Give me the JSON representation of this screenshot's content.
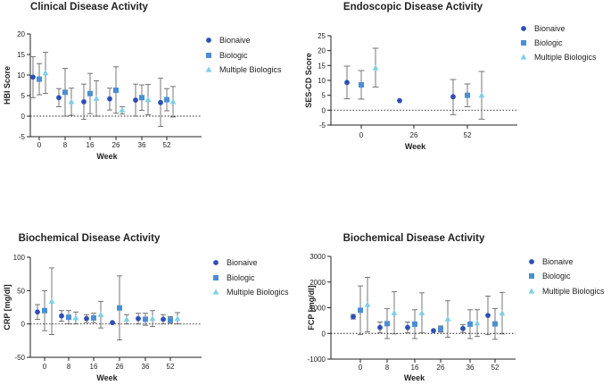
{
  "colors": {
    "bionaive": "#2e4fb5",
    "biologic": "#4a8fd4",
    "multiple": "#7fd0e6",
    "axis": "#222222",
    "errorbar": "#555555"
  },
  "chart_data": [
    {
      "id": "clinical",
      "type": "scatter",
      "title": "Clinical Disease Activity",
      "xlabel": "Week",
      "ylabel": "HBI Score",
      "ylim": [
        -5,
        20
      ],
      "yticks": [
        -5,
        0,
        5,
        10,
        15,
        20
      ],
      "xticks": [
        "0",
        "8",
        "16",
        "26",
        "36",
        "52"
      ],
      "legend": [
        "Bionaive",
        "Biologic",
        "Multiple Biologics"
      ],
      "series": [
        {
          "name": "Bionaive",
          "marker": "circle",
          "points": [
            {
              "x": 0,
              "y": 9.5,
              "lo": 4.5,
              "hi": 14.5
            },
            {
              "x": 8,
              "y": 4.5,
              "lo": 2.3,
              "hi": 6.7
            },
            {
              "x": 16,
              "y": 3.5,
              "lo": -0.8,
              "hi": 7.8
            },
            {
              "x": 26,
              "y": 4.2,
              "lo": 1.5,
              "hi": 6.8
            },
            {
              "x": 36,
              "y": 3.9,
              "lo": 0.0,
              "hi": 7.8
            },
            {
              "x": 52,
              "y": 3.3,
              "lo": -2.5,
              "hi": 9.2
            }
          ]
        },
        {
          "name": "Biologic",
          "marker": "square",
          "points": [
            {
              "x": 0,
              "y": 9.0,
              "lo": 5.2,
              "hi": 12.8
            },
            {
              "x": 8,
              "y": 5.8,
              "lo": 0.0,
              "hi": 11.6
            },
            {
              "x": 16,
              "y": 5.5,
              "lo": 0.6,
              "hi": 10.4
            },
            {
              "x": 26,
              "y": 6.3,
              "lo": 0.7,
              "hi": 12.0
            },
            {
              "x": 36,
              "y": 4.5,
              "lo": 1.4,
              "hi": 7.6
            },
            {
              "x": 52,
              "y": 4.0,
              "lo": 1.3,
              "hi": 6.7
            }
          ]
        },
        {
          "name": "Multiple Biologics",
          "marker": "triangle",
          "points": [
            {
              "x": 0,
              "y": 10.5,
              "lo": 5.5,
              "hi": 15.5
            },
            {
              "x": 8,
              "y": 3.5,
              "lo": 0.2,
              "hi": 6.8
            },
            {
              "x": 16,
              "y": 4.3,
              "lo": 0.0,
              "hi": 8.6
            },
            {
              "x": 26,
              "y": 1.5,
              "lo": 0.5,
              "hi": 2.3
            },
            {
              "x": 36,
              "y": 4.0,
              "lo": 0.3,
              "hi": 7.7
            },
            {
              "x": 52,
              "y": 3.5,
              "lo": -0.2,
              "hi": 7.2
            }
          ]
        }
      ]
    },
    {
      "id": "endoscopic",
      "type": "scatter",
      "title": "Endoscopic Disease Activity",
      "xlabel": "Week",
      "ylabel": "SES-CD Score",
      "ylim": [
        -5,
        25
      ],
      "yticks": [
        -5,
        0,
        5,
        10,
        15,
        20,
        25
      ],
      "xticks": [
        "0",
        "26",
        "52"
      ],
      "legend": [
        "Bionaive",
        "Biologic",
        "Multiple Biologics"
      ],
      "series": [
        {
          "name": "Bionaive",
          "marker": "circle",
          "points": [
            {
              "x": 0,
              "y": 9.3,
              "lo": 3.8,
              "hi": 14.8
            },
            {
              "x": 26,
              "y": 3.2,
              "lo": null,
              "hi": null
            },
            {
              "x": 52,
              "y": 4.5,
              "lo": -1.5,
              "hi": 10.3
            }
          ]
        },
        {
          "name": "Biologic",
          "marker": "square",
          "points": [
            {
              "x": 0,
              "y": 8.5,
              "lo": 3.7,
              "hi": 13.3
            },
            {
              "x": 52,
              "y": 5.0,
              "lo": 1.2,
              "hi": 8.8
            }
          ]
        },
        {
          "name": "Multiple Biologics",
          "marker": "triangle",
          "points": [
            {
              "x": 0,
              "y": 14.2,
              "lo": 7.8,
              "hi": 20.8
            },
            {
              "x": 52,
              "y": 5.0,
              "lo": -3.0,
              "hi": 13.0
            }
          ]
        }
      ]
    },
    {
      "id": "crp",
      "type": "scatter",
      "title": "Biochemical Disease Activity",
      "xlabel": "Week",
      "ylabel": "CRP [mg/dl]",
      "ylim": [
        -50,
        100
      ],
      "yticks": [
        -50,
        0,
        50,
        100
      ],
      "xticks": [
        "0",
        "8",
        "16",
        "26",
        "36",
        "52"
      ],
      "legend": [
        "Bionaive",
        "Biologic",
        "Multiple Biologics"
      ],
      "series": [
        {
          "name": "Bionaive",
          "marker": "circle",
          "points": [
            {
              "x": 0,
              "y": 18,
              "lo": 7,
              "hi": 29
            },
            {
              "x": 8,
              "y": 12,
              "lo": 4,
              "hi": 20
            },
            {
              "x": 16,
              "y": 8,
              "lo": 2,
              "hi": 14
            },
            {
              "x": 26,
              "y": 2,
              "lo": null,
              "hi": null
            },
            {
              "x": 36,
              "y": 8,
              "lo": 0,
              "hi": 16
            },
            {
              "x": 52,
              "y": 7,
              "lo": 0,
              "hi": 14
            }
          ]
        },
        {
          "name": "Biologic",
          "marker": "square",
          "points": [
            {
              "x": 0,
              "y": 20,
              "lo": -10,
              "hi": 50
            },
            {
              "x": 8,
              "y": 10,
              "lo": 0,
              "hi": 20
            },
            {
              "x": 16,
              "y": 9,
              "lo": 2,
              "hi": 16
            },
            {
              "x": 26,
              "y": 24,
              "lo": -24,
              "hi": 72
            },
            {
              "x": 36,
              "y": 7,
              "lo": -2,
              "hi": 16
            },
            {
              "x": 52,
              "y": 6,
              "lo": 1,
              "hi": 11
            }
          ]
        },
        {
          "name": "Multiple Biologics",
          "marker": "triangle",
          "points": [
            {
              "x": 0,
              "y": 34,
              "lo": -16,
              "hi": 84
            },
            {
              "x": 8,
              "y": 9,
              "lo": 0,
              "hi": 18
            },
            {
              "x": 16,
              "y": 14,
              "lo": -6,
              "hi": 34
            },
            {
              "x": 26,
              "y": 7,
              "lo": 0,
              "hi": 14
            },
            {
              "x": 36,
              "y": 8,
              "lo": -4,
              "hi": 20
            },
            {
              "x": 52,
              "y": 8,
              "lo": 0,
              "hi": 17
            }
          ]
        }
      ]
    },
    {
      "id": "fcp",
      "type": "scatter",
      "title": "Biochemical Disease Activity",
      "xlabel": "Week",
      "ylabel": "FCP [mg/dl]",
      "ylim": [
        -1000,
        3000
      ],
      "yticks": [
        -1000,
        0,
        1000,
        2000,
        3000
      ],
      "xticks": [
        "0",
        "8",
        "16",
        "26",
        "36",
        "52"
      ],
      "legend": [
        "Bionaive",
        "Biologic",
        "Multiple Biologics"
      ],
      "series": [
        {
          "name": "Bionaive",
          "marker": "circle",
          "points": [
            {
              "x": 0,
              "y": 650,
              "lo": 560,
              "hi": 740
            },
            {
              "x": 8,
              "y": 230,
              "lo": 20,
              "hi": 440
            },
            {
              "x": 16,
              "y": 230,
              "lo": 20,
              "hi": 440
            },
            {
              "x": 26,
              "y": 110,
              "lo": null,
              "hi": null
            },
            {
              "x": 36,
              "y": 190,
              "lo": 40,
              "hi": 340
            },
            {
              "x": 52,
              "y": 700,
              "lo": -50,
              "hi": 1450
            }
          ]
        },
        {
          "name": "Biologic",
          "marker": "square",
          "points": [
            {
              "x": 0,
              "y": 900,
              "lo": -50,
              "hi": 1850
            },
            {
              "x": 8,
              "y": 380,
              "lo": -200,
              "hi": 960
            },
            {
              "x": 16,
              "y": 360,
              "lo": -200,
              "hi": 920
            },
            {
              "x": 26,
              "y": 170,
              "lo": 50,
              "hi": 290
            },
            {
              "x": 36,
              "y": 360,
              "lo": -200,
              "hi": 920
            },
            {
              "x": 52,
              "y": 370,
              "lo": -230,
              "hi": 970
            }
          ]
        },
        {
          "name": "Multiple Biologics",
          "marker": "triangle",
          "points": [
            {
              "x": 0,
              "y": 1120,
              "lo": 60,
              "hi": 2180
            },
            {
              "x": 8,
              "y": 800,
              "lo": -20,
              "hi": 1620
            },
            {
              "x": 16,
              "y": 800,
              "lo": 20,
              "hi": 1580
            },
            {
              "x": 26,
              "y": 560,
              "lo": -150,
              "hi": 1270
            },
            {
              "x": 36,
              "y": 400,
              "lo": -120,
              "hi": 920
            },
            {
              "x": 52,
              "y": 790,
              "lo": -20,
              "hi": 1600
            }
          ]
        }
      ]
    }
  ]
}
